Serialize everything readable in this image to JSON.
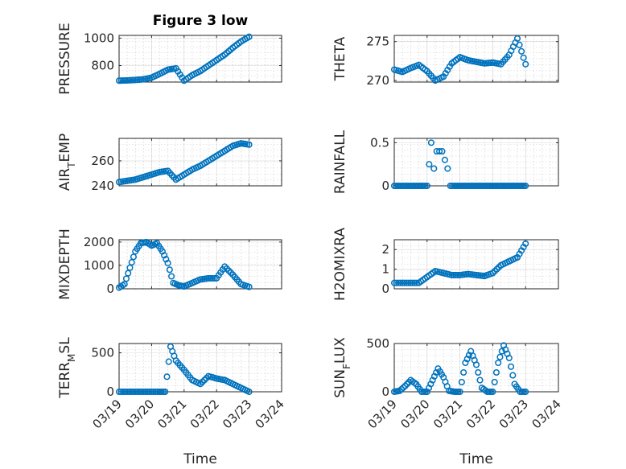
{
  "figure_title": "Figure 3 low",
  "marker_color": "#0072bd",
  "x_tick_labels": [
    "03/19",
    "03/20",
    "03/21",
    "03/22",
    "03/23",
    "03/24"
  ],
  "chart_data": [
    {
      "type": "scatter",
      "title": "Figure 3 low",
      "ylabel": "PRESSURE",
      "xlabel": "",
      "ylim": [
        680,
        1020
      ],
      "yticks": [
        800,
        1000
      ],
      "xlim": [
        "03/19",
        "03/24"
      ],
      "grid": true,
      "x": [
        "03/19 00:00",
        "03/19 06:00",
        "03/19 12:00",
        "03/19 18:00",
        "03/20 00:00",
        "03/20 06:00",
        "03/20 12:00",
        "03/20 18:00",
        "03/21 00:00",
        "03/21 06:00",
        "03/21 12:00",
        "03/21 18:00",
        "03/22 00:00",
        "03/22 06:00",
        "03/22 12:00",
        "03/22 18:00",
        "03/23 00:00"
      ],
      "y": [
        690,
        692,
        695,
        700,
        712,
        740,
        770,
        780,
        690,
        730,
        760,
        800,
        840,
        880,
        930,
        975,
        1010
      ]
    },
    {
      "type": "scatter",
      "ylabel": "THETA",
      "xlabel": "",
      "ylim": [
        269.8,
        275.8
      ],
      "yticks": [
        270,
        275
      ],
      "xlim": [
        "03/19",
        "03/24"
      ],
      "grid": true,
      "x": [
        "03/19 00:00",
        "03/19 06:00",
        "03/19 12:00",
        "03/19 18:00",
        "03/20 00:00",
        "03/20 06:00",
        "03/20 12:00",
        "03/20 18:00",
        "03/21 00:00",
        "03/21 06:00",
        "03/21 12:00",
        "03/21 18:00",
        "03/22 00:00",
        "03/22 06:00",
        "03/22 12:00",
        "03/22 18:00",
        "03/23 00:00"
      ],
      "y": [
        271.4,
        271.1,
        271.6,
        272.0,
        271.2,
        270.0,
        270.5,
        272.2,
        273.0,
        272.6,
        272.4,
        272.2,
        272.3,
        272.1,
        273.3,
        275.4,
        272.1
      ]
    },
    {
      "type": "scatter",
      "ylabel": "AIR_TEMP",
      "xlabel": "",
      "ylim": [
        240,
        278
      ],
      "yticks": [
        240,
        260,
        280
      ],
      "xlim": [
        "03/19",
        "03/24"
      ],
      "grid": true,
      "x": [
        "03/19 00:00",
        "03/19 06:00",
        "03/19 12:00",
        "03/19 18:00",
        "03/20 00:00",
        "03/20 06:00",
        "03/20 12:00",
        "03/20 18:00",
        "03/21 00:00",
        "03/21 06:00",
        "03/21 12:00",
        "03/21 18:00",
        "03/22 00:00",
        "03/22 06:00",
        "03/22 12:00",
        "03/22 18:00",
        "03/23 00:00"
      ],
      "y": [
        243,
        244,
        245,
        247,
        249,
        251,
        252,
        245,
        249,
        253,
        256,
        260,
        264,
        268,
        272,
        274,
        273
      ]
    },
    {
      "type": "scatter",
      "ylabel": "RAINFALL",
      "xlabel": "",
      "ylim": [
        0,
        0.55
      ],
      "yticks": [
        0,
        0.5
      ],
      "xlim": [
        "03/19",
        "03/24"
      ],
      "grid": true,
      "x": [
        "03/19 00:00",
        "03/19 12:00",
        "03/20 00:00",
        "03/20 03:00",
        "03/20 05:00",
        "03/20 07:00",
        "03/20 09:00",
        "03/20 11:00",
        "03/20 13:00",
        "03/20 15:00",
        "03/20 17:00",
        "03/21 00:00",
        "03/21 12:00",
        "03/22 00:00",
        "03/22 12:00",
        "03/23 00:00"
      ],
      "y": [
        0,
        0,
        0,
        0.5,
        0.2,
        0.4,
        0.4,
        0.4,
        0.3,
        0.2,
        0,
        0,
        0,
        0,
        0,
        0
      ]
    },
    {
      "type": "scatter",
      "ylabel": "MIXDEPTH",
      "xlabel": "",
      "ylim": [
        0,
        2100
      ],
      "yticks": [
        0,
        1000,
        2000
      ],
      "xlim": [
        "03/19",
        "03/24"
      ],
      "grid": true,
      "x": [
        "03/19 00:00",
        "03/19 04:00",
        "03/19 08:00",
        "03/19 12:00",
        "03/19 16:00",
        "03/19 20:00",
        "03/20 00:00",
        "03/20 04:00",
        "03/20 08:00",
        "03/20 12:00",
        "03/20 16:00",
        "03/20 20:00",
        "03/21 00:00",
        "03/21 06:00",
        "03/21 12:00",
        "03/21 18:00",
        "03/22 00:00",
        "03/22 06:00",
        "03/22 12:00",
        "03/22 18:00",
        "03/23 00:00"
      ],
      "y": [
        50,
        200,
        900,
        1600,
        1950,
        2000,
        1850,
        1950,
        1600,
        1100,
        250,
        150,
        100,
        250,
        400,
        450,
        450,
        950,
        600,
        200,
        80
      ]
    },
    {
      "type": "scatter",
      "ylabel": "H2OMIXRA",
      "xlabel": "",
      "ylim": [
        0,
        2.5
      ],
      "yticks": [
        0,
        1,
        2
      ],
      "xlim": [
        "03/19",
        "03/24"
      ],
      "grid": true,
      "x": [
        "03/19 00:00",
        "03/19 06:00",
        "03/19 12:00",
        "03/19 18:00",
        "03/20 00:00",
        "03/20 06:00",
        "03/20 12:00",
        "03/20 18:00",
        "03/21 00:00",
        "03/21 06:00",
        "03/21 12:00",
        "03/21 18:00",
        "03/22 00:00",
        "03/22 06:00",
        "03/22 12:00",
        "03/22 18:00",
        "03/23 00:00"
      ],
      "y": [
        0.3,
        0.3,
        0.3,
        0.3,
        0.6,
        0.9,
        0.8,
        0.7,
        0.7,
        0.75,
        0.7,
        0.65,
        0.8,
        1.2,
        1.4,
        1.6,
        2.3
      ]
    },
    {
      "type": "scatter",
      "ylabel": "TERR_MSL",
      "xlabel": "Time",
      "ylim": [
        0,
        620
      ],
      "yticks": [
        0,
        500
      ],
      "xlim": [
        "03/19",
        "03/24"
      ],
      "grid": true,
      "x": [
        "03/19 00:00",
        "03/19 06:00",
        "03/19 12:00",
        "03/19 18:00",
        "03/20 00:00",
        "03/20 06:00",
        "03/20 10:00",
        "03/20 14:00",
        "03/20 18:00",
        "03/21 00:00",
        "03/21 06:00",
        "03/21 12:00",
        "03/21 18:00",
        "03/22 00:00",
        "03/22 06:00",
        "03/22 12:00",
        "03/22 18:00",
        "03/23 00:00"
      ],
      "y": [
        0,
        0,
        0,
        0,
        0,
        0,
        0,
        580,
        400,
        280,
        150,
        100,
        200,
        170,
        150,
        100,
        50,
        0
      ]
    },
    {
      "type": "scatter",
      "ylabel": "SUN_FLUX",
      "xlabel": "Time",
      "ylim": [
        0,
        500
      ],
      "yticks": [
        0,
        500
      ],
      "xlim": [
        "03/19",
        "03/24"
      ],
      "grid": true,
      "x": [
        "03/19 00:00",
        "03/19 04:00",
        "03/19 08:00",
        "03/19 12:00",
        "03/19 16:00",
        "03/19 20:00",
        "03/20 00:00",
        "03/20 04:00",
        "03/20 08:00",
        "03/20 12:00",
        "03/20 16:00",
        "03/20 20:00",
        "03/21 00:00",
        "03/21 04:00",
        "03/21 08:00",
        "03/21 12:00",
        "03/21 16:00",
        "03/21 20:00",
        "03/22 00:00",
        "03/22 04:00",
        "03/22 08:00",
        "03/22 12:00",
        "03/22 16:00",
        "03/22 20:00",
        "03/23 00:00"
      ],
      "y": [
        0,
        10,
        60,
        120,
        80,
        0,
        0,
        120,
        240,
        150,
        10,
        0,
        0,
        300,
        420,
        280,
        40,
        0,
        0,
        300,
        480,
        350,
        80,
        0,
        0
      ]
    }
  ]
}
